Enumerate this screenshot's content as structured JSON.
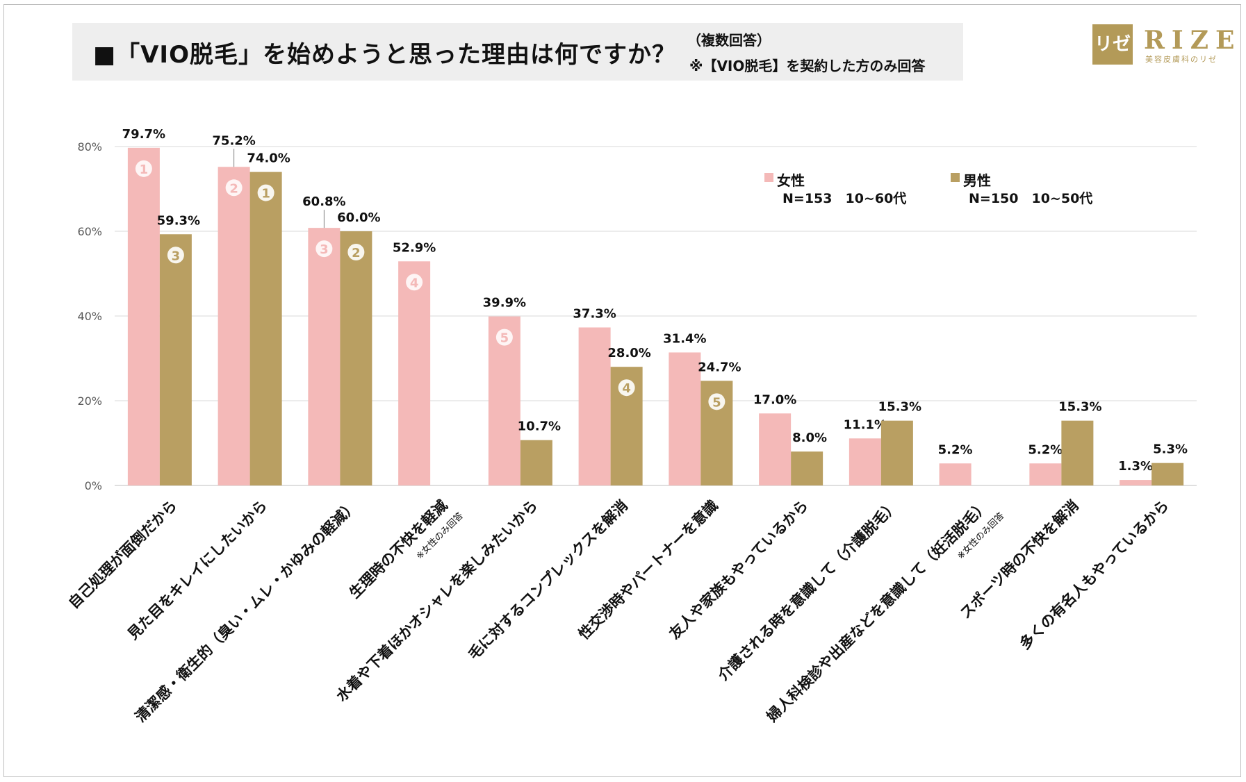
{
  "title": {
    "main": "■「VIO脱毛」を始めようと思った理由は何ですか？",
    "sub1": "（複数回答）",
    "sub2": "※【VIO脱毛】を契約した方のみ回答"
  },
  "logo": {
    "mark": "リゼ",
    "name": "RIZE",
    "tagline": "美容皮膚科のリゼ"
  },
  "colors": {
    "female": "#f4b9b8",
    "male": "#b99f62",
    "grid": "#d9d9d9",
    "axis": "#bfbfbf"
  },
  "legend": [
    {
      "name": "女性",
      "n": "N=153　10~60代"
    },
    {
      "name": "男性",
      "n": "N=150　10~50代"
    }
  ],
  "chart_data": {
    "type": "bar",
    "title": "「VIO脱毛」を始めようと思った理由は何ですか？",
    "ylim": [
      0,
      80
    ],
    "yticks": [
      "0%",
      "20%",
      "40%",
      "60%",
      "80%"
    ],
    "grid": true,
    "legend_position": "top-right",
    "categories": [
      "自己処理が面倒だから",
      "見た目をキレイにしたいから",
      "清潔感・衛生的（臭い・ムレ・かゆみの軽減）",
      "生理時の不快を軽減",
      "水着や下着ほかオシャレを楽しみたいから",
      "毛に対するコンプレックスを解消",
      "性交渉時やパートナーを意識",
      "友人や家族もやっているから",
      "介護される時を意識して（介護脱毛）",
      "婦人科検診や出産などを意識して（妊活脱毛）",
      "スポーツ時の不快を解消",
      "多くの有名人もやっているから"
    ],
    "category_notes": [
      "",
      "",
      "",
      "※女性のみ回答",
      "",
      "",
      "",
      "",
      "",
      "※女性のみ回答",
      "",
      ""
    ],
    "series": [
      {
        "name": "女性",
        "values": [
          79.7,
          75.2,
          60.8,
          52.9,
          39.9,
          37.3,
          31.4,
          17.0,
          11.1,
          5.2,
          5.2,
          1.3
        ],
        "labels": [
          "79.7%",
          "75.2%",
          "60.8%",
          "52.9%",
          "39.9%",
          "37.3%",
          "31.4%",
          "17.0%",
          "11.1%",
          "5.2%",
          "5.2%",
          "1.3%"
        ],
        "ranks": [
          "1",
          "2",
          "3",
          "4",
          "5",
          "",
          "",
          "",
          "",
          "",
          "",
          ""
        ]
      },
      {
        "name": "男性",
        "values": [
          59.3,
          74.0,
          60.0,
          null,
          10.7,
          28.0,
          24.7,
          8.0,
          15.3,
          null,
          15.3,
          5.3
        ],
        "labels": [
          "59.3%",
          "74.0%",
          "60.0%",
          "",
          "10.7%",
          "28.0%",
          "24.7%",
          "8.0%",
          "15.3%",
          "",
          "15.3%",
          "5.3%"
        ],
        "ranks": [
          "3",
          "1",
          "2",
          "",
          "",
          "4",
          "5",
          "",
          "",
          "",
          "",
          ""
        ]
      }
    ]
  }
}
